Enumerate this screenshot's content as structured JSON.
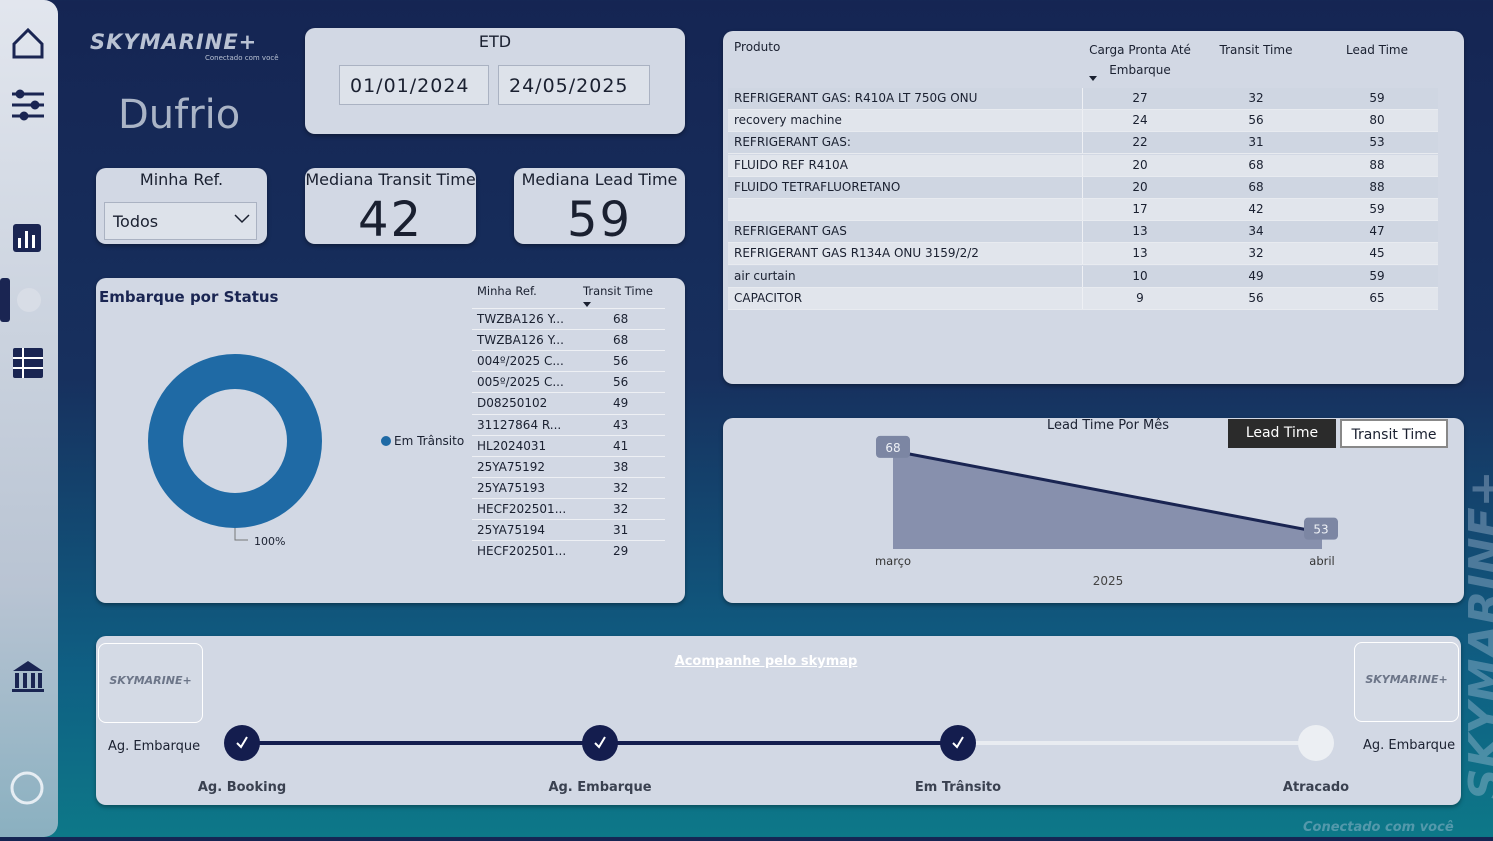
{
  "brand": {
    "skymarine": "SKYMARINE+",
    "tagline": "Conectado com você",
    "dufrio": "Dufrio"
  },
  "etd": {
    "label": "ETD",
    "start": "01/01/2024",
    "end": "24/05/2025"
  },
  "filter": {
    "label": "Minha Ref.",
    "value": "Todos"
  },
  "kpis": [
    {
      "label": "Mediana Transit Time",
      "value": 42
    },
    {
      "label": "Mediana Lead Time",
      "value": 59
    }
  ],
  "product_table": {
    "columns": [
      "Produto",
      "Carga Pronta Até Embarque",
      "Transit Time",
      "Lead Time"
    ],
    "rows": [
      [
        "REFRIGERANT GAS: R410A LT 750G ONU",
        27,
        32,
        59
      ],
      [
        "recovery machine",
        24,
        56,
        80
      ],
      [
        "REFRIGERANT GAS:",
        22,
        31,
        53
      ],
      [
        "FLUIDO REF R410A",
        20,
        68,
        88
      ],
      [
        "FLUIDO TETRAFLUORETANO",
        20,
        68,
        88
      ],
      [
        null,
        17,
        42,
        59
      ],
      [
        "REFRIGERANT GAS",
        13,
        34,
        47
      ],
      [
        "REFRIGERANT GAS R134A ONU 3159/2/2",
        13,
        32,
        45
      ],
      [
        "air curtain",
        10,
        49,
        59
      ],
      [
        "CAPACITOR",
        9,
        56,
        65
      ]
    ]
  },
  "status_chart": {
    "type": "pie",
    "title": "Embarque por Status",
    "categories": [
      "Em Trânsito"
    ],
    "values": [
      100
    ],
    "value_labels": [
      "100%"
    ],
    "color": "#1f6aa5",
    "table": {
      "columns": [
        "Minha Ref.",
        "Transit Time"
      ],
      "rows": [
        [
          "TWZBA126 Y...",
          68
        ],
        [
          "TWZBA126 Y...",
          68
        ],
        [
          "004º/2025 C...",
          56
        ],
        [
          "005º/2025 C...",
          56
        ],
        [
          "D08250102",
          49
        ],
        [
          "31127864  R...",
          43
        ],
        [
          "HL2024031",
          41
        ],
        [
          "25YA75192",
          38
        ],
        [
          "25YA75193",
          32
        ],
        [
          "HECF202501...",
          32
        ],
        [
          "25YA75194",
          31
        ],
        [
          "HECF202501...",
          29
        ]
      ]
    }
  },
  "lead_chart": {
    "type": "area",
    "title": "Lead Time Por Mês",
    "categories": [
      "março",
      "abril"
    ],
    "values": [
      68,
      53
    ],
    "x_label": "2025",
    "ylim": [
      50,
      70
    ],
    "color": "#8790ad",
    "line_color": "#1a2552",
    "toggle": [
      "Lead Time",
      "Transit Time"
    ]
  },
  "tracker": {
    "link": "Acompanhe pelo skymap",
    "left_label": "Ag. Embarque",
    "right_label": "Ag. Embarque",
    "steps": [
      {
        "label": "Ag. Booking",
        "done": true
      },
      {
        "label": "Ag. Embarque",
        "done": true
      },
      {
        "label": "Em Trânsito",
        "done": true
      },
      {
        "label": "Atracado",
        "done": false
      }
    ]
  }
}
